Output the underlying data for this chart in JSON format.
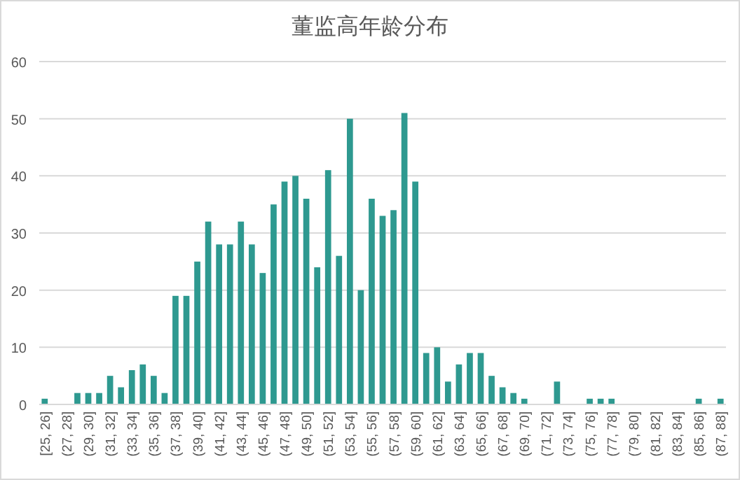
{
  "chart_data": {
    "type": "bar",
    "title": "董监高年龄分布",
    "categories": [
      "[25, 26]",
      null,
      "(27, 28]",
      null,
      "(29, 30]",
      null,
      "(31, 32]",
      null,
      "(33, 34]",
      null,
      "(35, 36]",
      null,
      "(37, 38]",
      null,
      "(39, 40]",
      null,
      "(41, 42]",
      null,
      "(43, 44]",
      null,
      "(45, 46]",
      null,
      "(47, 48]",
      null,
      "(49, 50]",
      null,
      "(51, 52]",
      null,
      "(53, 54]",
      null,
      "(55, 56]",
      null,
      "(57, 58]",
      null,
      "(59, 60]",
      null,
      "(61, 62]",
      null,
      "(63, 64]",
      null,
      "(65, 66]",
      null,
      "(67, 68]",
      null,
      "(69, 70]",
      null,
      "(71, 72]",
      null,
      "(73, 74]",
      null,
      "(75, 76]",
      null,
      "(77, 78]",
      null,
      "(79, 80]",
      null,
      "(81, 82]",
      null,
      "(83, 84]",
      null,
      "(85, 86]",
      null,
      "(87, 88]"
    ],
    "values": [
      1,
      0,
      0,
      2,
      2,
      2,
      5,
      3,
      6,
      7,
      5,
      2,
      19,
      19,
      25,
      32,
      28,
      28,
      32,
      28,
      23,
      35,
      39,
      40,
      36,
      24,
      41,
      26,
      50,
      20,
      36,
      33,
      34,
      51,
      39,
      9,
      10,
      4,
      7,
      9,
      9,
      5,
      3,
      2,
      1,
      0,
      0,
      4,
      0,
      0,
      1,
      1,
      1,
      0,
      0,
      0,
      0,
      0,
      0,
      0,
      1,
      0,
      1
    ],
    "color": "#2e9990",
    "ylim": [
      0,
      60
    ],
    "yticks": [
      0,
      10,
      20,
      30,
      40,
      50,
      60
    ],
    "grid": "y"
  }
}
